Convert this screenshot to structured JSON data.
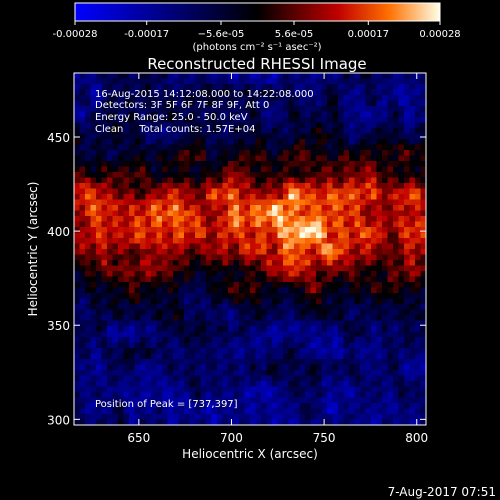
{
  "chart_data": {
    "type": "heatmap",
    "title": "Reconstructed RHESSI Image",
    "xlabel": "Heliocentric X (arcsec)",
    "ylabel": "Heliocentric Y (arcsec)",
    "xlim": [
      615,
      805
    ],
    "ylim": [
      297,
      484
    ],
    "x_ticks": [
      650,
      700,
      750,
      800
    ],
    "y_ticks": [
      300,
      350,
      400,
      450
    ],
    "colorbar": {
      "min": -0.00028,
      "max": 0.00028,
      "ticks": [
        -0.00028,
        -0.00017,
        -5.6e-05,
        5.6e-05,
        0.00017,
        0.00028
      ],
      "tick_labels": [
        "-0.00028",
        "-0.00017",
        "−5.6e-05",
        "5.6e-05",
        "0.00017",
        "0.00028"
      ],
      "unit_label": "(photons cm⁻² s⁻¹ asec⁻²)"
    },
    "annotations": [
      "16-Aug-2015 14:12:08.000 to 14:22:08.000",
      "Detectors: 3F 5F 6F 7F 8F 9F, Att 0",
      "Energy Range: 25.0 - 50.0 keV",
      "Clean     Total counts: 1.57E+04"
    ],
    "peak_label": "Position of Peak = [737,397]",
    "peak": [
      737,
      397
    ],
    "grid": false
  },
  "footer": {
    "date": "7-Aug-2017 07:51"
  }
}
